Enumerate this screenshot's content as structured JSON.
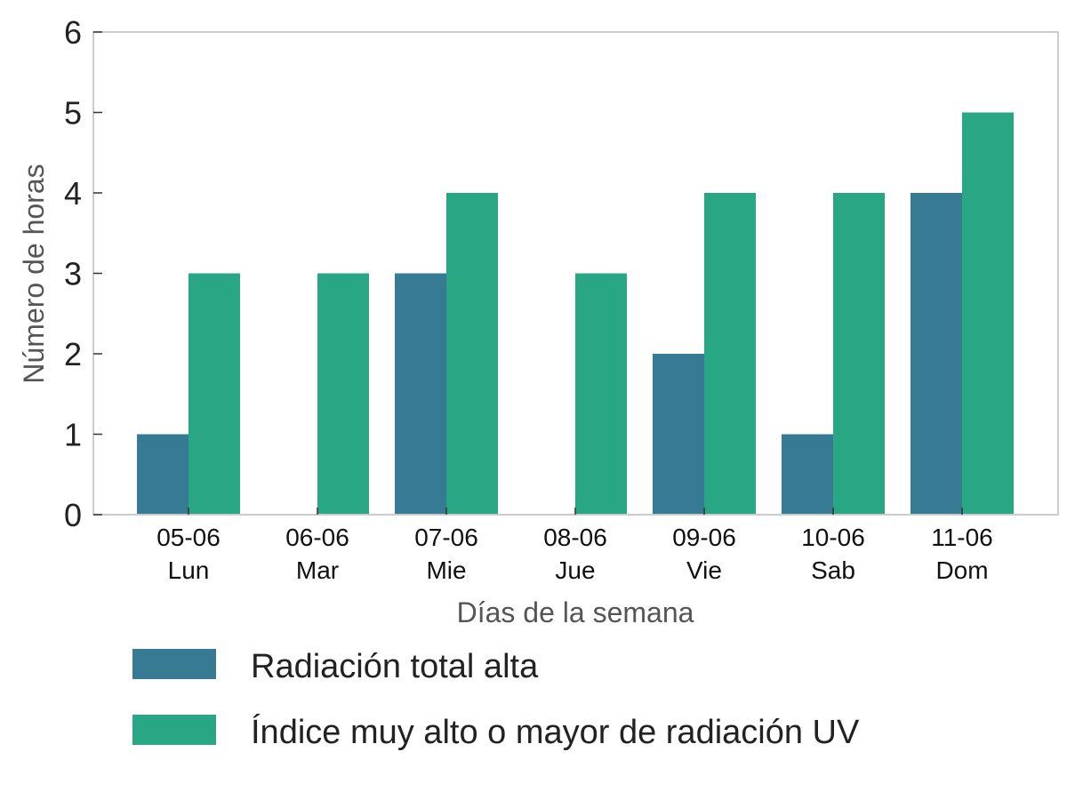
{
  "chart_data": {
    "type": "bar",
    "categories": [
      [
        "05-06",
        "Lun"
      ],
      [
        "06-06",
        "Mar"
      ],
      [
        "07-06",
        "Mie"
      ],
      [
        "08-06",
        "Jue"
      ],
      [
        "09-06",
        "Vie"
      ],
      [
        "10-06",
        "Sab"
      ],
      [
        "11-06",
        "Dom"
      ]
    ],
    "series": [
      {
        "name": "Radiación total alta",
        "color": "#377a94",
        "values": [
          1,
          0,
          3,
          0,
          2,
          1,
          4
        ]
      },
      {
        "name": "Índice muy alto o mayor de radiación UV",
        "color": "#29a784",
        "values": [
          3,
          3,
          4,
          3,
          4,
          4,
          5
        ]
      }
    ],
    "xlabel": "Días de la semana",
    "ylabel": "Número de horas",
    "ylim": [
      0,
      6
    ],
    "yticks": [
      "0",
      "1",
      "2",
      "3",
      "4",
      "5",
      "6"
    ],
    "grid": false,
    "legend_position": "bottom"
  }
}
